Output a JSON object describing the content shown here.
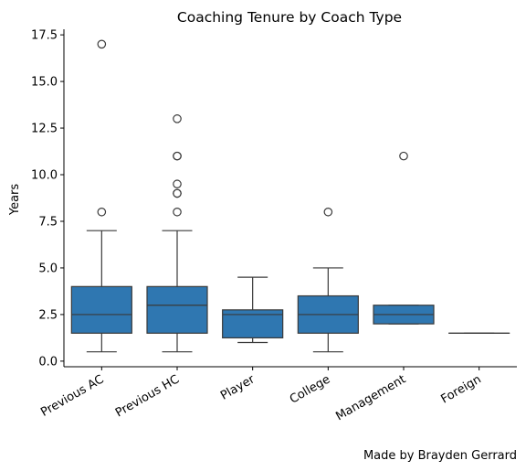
{
  "chart_data": {
    "type": "box",
    "title": "Coaching Tenure by Coach Type",
    "xlabel": "",
    "ylabel": "Years",
    "ylim": [
      -0.3,
      17.8
    ],
    "yticks": [
      "0.0",
      "2.5",
      "5.0",
      "7.5",
      "10.0",
      "12.5",
      "15.0",
      "17.5"
    ],
    "ytick_values": [
      0,
      2.5,
      5,
      7.5,
      10,
      12.5,
      15,
      17.5
    ],
    "box_color": "#2f77b1",
    "line_color": "#3a3a3a",
    "grid": false,
    "categories": [
      "Previous AC",
      "Previous HC",
      "Player",
      "College",
      "Management",
      "Foreign"
    ],
    "boxes": [
      {
        "category": "Previous AC",
        "whisker_low": 0.5,
        "q1": 1.5,
        "median": 2.5,
        "q3": 4.0,
        "whisker_high": 7.0,
        "outliers": [
          8.0,
          17.0
        ]
      },
      {
        "category": "Previous HC",
        "whisker_low": 0.5,
        "q1": 1.5,
        "median": 3.0,
        "q3": 4.0,
        "whisker_high": 7.0,
        "outliers": [
          8.0,
          9.0,
          9.0,
          9.5,
          11.0,
          11.0,
          13.0
        ]
      },
      {
        "category": "Player",
        "whisker_low": 1.0,
        "q1": 1.25,
        "median": 2.5,
        "q3": 2.75,
        "whisker_high": 4.5,
        "outliers": []
      },
      {
        "category": "College",
        "whisker_low": 0.5,
        "q1": 1.5,
        "median": 2.5,
        "q3": 3.5,
        "whisker_high": 5.0,
        "outliers": [
          8.0
        ]
      },
      {
        "category": "Management",
        "whisker_low": 2.0,
        "q1": 2.0,
        "median": 2.5,
        "q3": 3.0,
        "whisker_high": 3.0,
        "outliers": [
          11.0
        ]
      },
      {
        "category": "Foreign",
        "whisker_low": 1.5,
        "q1": 1.5,
        "median": 1.5,
        "q3": 1.5,
        "whisker_high": 1.5,
        "outliers": []
      }
    ]
  },
  "footer": {
    "credit": "Made by Brayden Gerrard"
  }
}
